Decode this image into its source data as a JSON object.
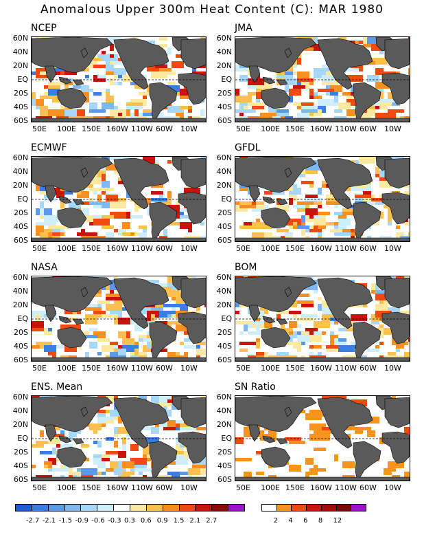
{
  "title": "Anomalous Upper 300m Heat Content (C): MAR 1980",
  "chart_data": [
    {
      "type": "heatmap",
      "title": "NCEP"
    },
    {
      "type": "heatmap",
      "title": "JMA"
    },
    {
      "type": "heatmap",
      "title": "ECMWF"
    },
    {
      "type": "heatmap",
      "title": "GFDL"
    },
    {
      "type": "heatmap",
      "title": "NASA"
    },
    {
      "type": "heatmap",
      "title": "BOM"
    },
    {
      "type": "heatmap",
      "title": "ENS. Mean"
    },
    {
      "type": "heatmap",
      "title": "SN Ratio"
    }
  ],
  "axes": {
    "y_ticks": [
      "60N",
      "40N",
      "20N",
      "EQ",
      "20S",
      "40S",
      "60S"
    ],
    "x_ticks": [
      "50E",
      "100E",
      "150E",
      "160W",
      "110W",
      "60W",
      "10W"
    ]
  },
  "colorbar_anomaly": {
    "colors": [
      "#1e5fd0",
      "#3a7fe0",
      "#5a9ae8",
      "#7fb8f0",
      "#a6d6f8",
      "#cfeefc",
      "#ffffff",
      "#fce9a0",
      "#fbc050",
      "#f79020",
      "#ee4a12",
      "#c8140c",
      "#8c0808",
      "#9b13c8"
    ],
    "labels": [
      "-2.7",
      "-2.1",
      "-1.5",
      "-0.9",
      "-0.6",
      "-0.3",
      "0.3",
      "0.6",
      "0.9",
      "1.5",
      "2.1",
      "2.7"
    ]
  },
  "colorbar_sn": {
    "colors": [
      "#ffffff",
      "#f7941d",
      "#ee4a12",
      "#c8140c",
      "#a00a0a",
      "#7a0505",
      "#9b13c8"
    ],
    "labels": [
      "2",
      "4",
      "6",
      "8",
      "12"
    ]
  },
  "colors": {
    "land": "#5a5a5a",
    "ocean": "#ffffff"
  }
}
